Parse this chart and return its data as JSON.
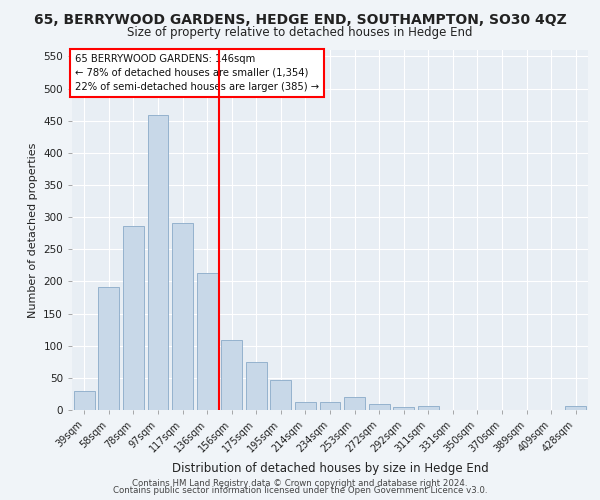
{
  "title": "65, BERRYWOOD GARDENS, HEDGE END, SOUTHAMPTON, SO30 4QZ",
  "subtitle": "Size of property relative to detached houses in Hedge End",
  "xlabel": "Distribution of detached houses by size in Hedge End",
  "ylabel": "Number of detached properties",
  "categories": [
    "39sqm",
    "58sqm",
    "78sqm",
    "97sqm",
    "117sqm",
    "136sqm",
    "156sqm",
    "175sqm",
    "195sqm",
    "214sqm",
    "234sqm",
    "253sqm",
    "272sqm",
    "292sqm",
    "311sqm",
    "331sqm",
    "350sqm",
    "370sqm",
    "389sqm",
    "409sqm",
    "428sqm"
  ],
  "values": [
    30,
    191,
    287,
    459,
    291,
    213,
    109,
    74,
    47,
    13,
    13,
    21,
    9,
    5,
    6,
    0,
    0,
    0,
    0,
    0,
    6
  ],
  "bar_color": "#c8d8e8",
  "bar_edge_color": "#8aaac8",
  "property_label": "65 BERRYWOOD GARDENS: 146sqm",
  "pct_smaller": 78,
  "n_smaller": 1354,
  "pct_larger_semi": 22,
  "n_larger_semi": 385,
  "vline_pos": 5.5,
  "ylim": [
    0,
    560
  ],
  "yticks": [
    0,
    50,
    100,
    150,
    200,
    250,
    300,
    350,
    400,
    450,
    500,
    550
  ],
  "bar_width": 0.85,
  "background_color": "#e8eef4",
  "grid_color": "#ffffff",
  "footer1": "Contains HM Land Registry data © Crown copyright and database right 2024.",
  "footer2": "Contains public sector information licensed under the Open Government Licence v3.0."
}
